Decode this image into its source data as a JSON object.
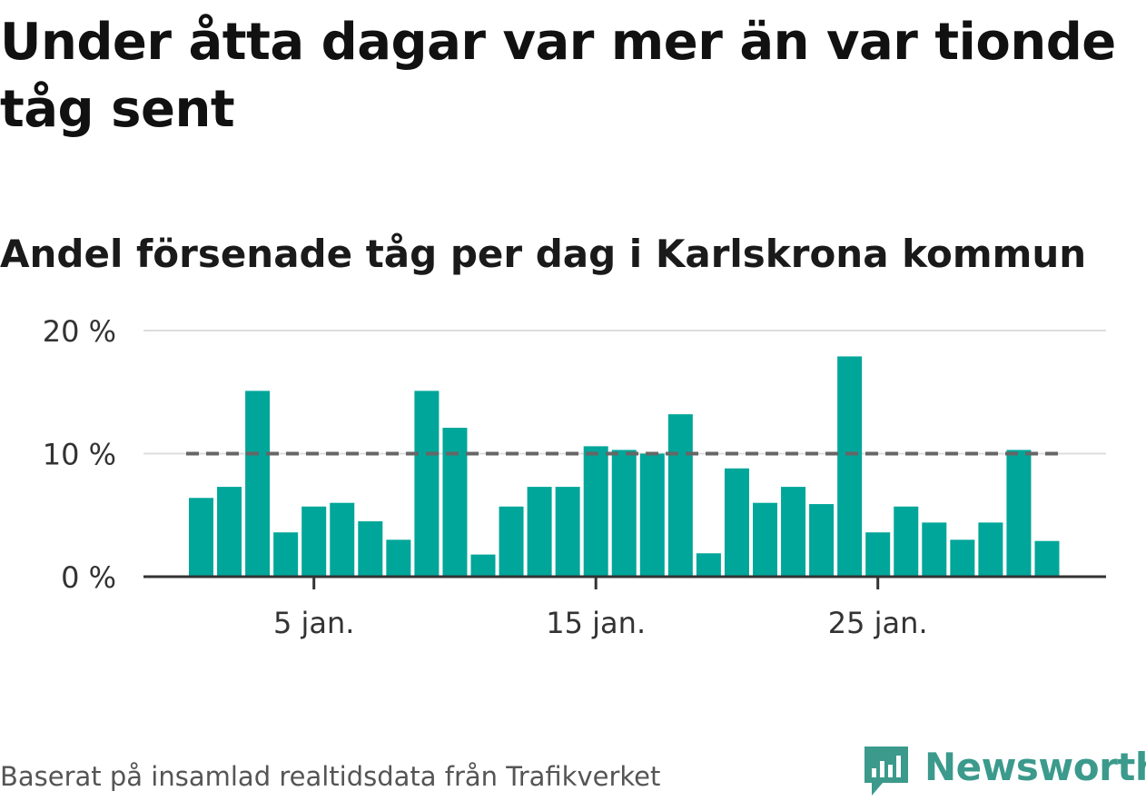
{
  "title": "Under åtta dagar var mer än var tionde tåg sent",
  "subtitle": "Andel försenade tåg per dag i Karlskrona kommun",
  "source": "Baserat på insamlad realtidsdata från Trafikverket",
  "logo_text": "Newsworthy",
  "colors": {
    "bar": "#00a699",
    "reference_line": "#666666",
    "grid": "#dddddd",
    "axis": "#333333"
  },
  "chart_data": {
    "type": "bar",
    "x": [
      1,
      2,
      3,
      4,
      5,
      6,
      7,
      8,
      9,
      10,
      11,
      12,
      13,
      14,
      15,
      16,
      17,
      18,
      19,
      20,
      21,
      22,
      23,
      24,
      25,
      26,
      27,
      28,
      29,
      30,
      31
    ],
    "values": [
      6.4,
      7.3,
      15.1,
      3.6,
      5.7,
      6.0,
      4.5,
      3.0,
      15.1,
      12.1,
      1.8,
      5.7,
      7.3,
      7.3,
      10.6,
      10.3,
      10.0,
      13.2,
      1.9,
      8.8,
      6.0,
      7.3,
      5.9,
      17.9,
      3.6,
      5.7,
      4.4,
      3.0,
      4.4,
      10.3,
      2.9
    ],
    "reference_line": 10,
    "ylim": [
      0,
      20
    ],
    "y_ticks": [
      {
        "value": 0,
        "label": "0 %"
      },
      {
        "value": 10,
        "label": "10 %"
      },
      {
        "value": 20,
        "label": "20 %"
      }
    ],
    "x_ticks": [
      {
        "value": 5,
        "label": "5 jan."
      },
      {
        "value": 15,
        "label": "15 jan."
      },
      {
        "value": 25,
        "label": "25 jan."
      }
    ],
    "xlabel": "",
    "ylabel": "",
    "grid": true
  }
}
